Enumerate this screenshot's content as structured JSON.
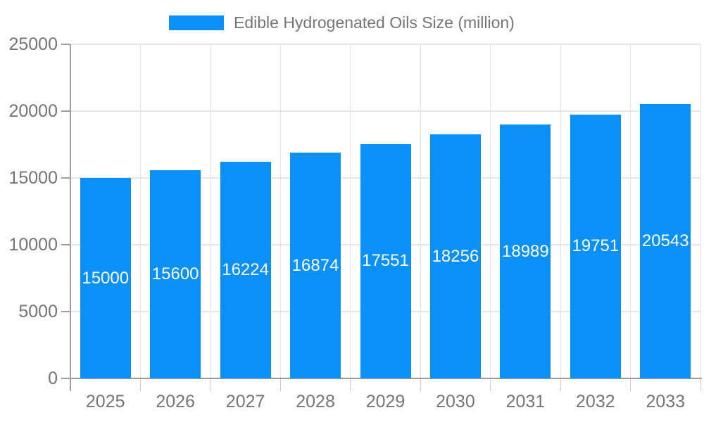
{
  "legend": {
    "label": "Edible Hydrogenated Oils Size (million)"
  },
  "chart_data": {
    "type": "bar",
    "title": "Edible Hydrogenated Oils Size (million)",
    "categories": [
      "2025",
      "2026",
      "2027",
      "2028",
      "2029",
      "2030",
      "2031",
      "2032",
      "2033"
    ],
    "series": [
      {
        "name": "Edible Hydrogenated Oils Size (million)",
        "values": [
          15000,
          15600,
          16224,
          16874,
          17551,
          18256,
          18989,
          19751,
          20543
        ]
      }
    ],
    "bar_labels": [
      "15000",
      "15600",
      "16224",
      "16874",
      "17551",
      "18256",
      "18989",
      "19751",
      "20543"
    ],
    "xlabel": "",
    "ylabel": "",
    "ylim": [
      0,
      25000
    ],
    "ytick_step": 5000,
    "ytick_labels": [
      "0",
      "5000",
      "10000",
      "15000",
      "20000",
      "25000"
    ],
    "grid": true,
    "legend_position": "top-center",
    "colors": {
      "bar": "#0a90f9",
      "bar_label": "#ffffff",
      "axis_text": "#757575",
      "legend_text": "#757575",
      "gridline_h": "#e6e6e6",
      "gridline_v": "#e3e3e3",
      "axis_line": "#9e9e9e",
      "tick": "#cccccc",
      "background": "#ffffff"
    }
  }
}
